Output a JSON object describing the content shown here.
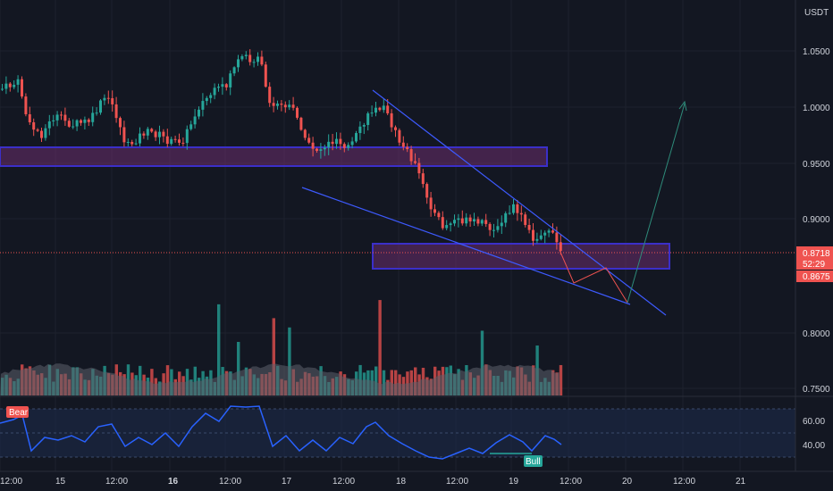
{
  "currency": "USDT",
  "price_axis": {
    "ticks": [
      "1.0500",
      "1.0000",
      "0.9500",
      "0.9000",
      "0.8000",
      "0.7500"
    ],
    "current_price": "0.8718",
    "countdown": "52:29",
    "low_price": "0.8675"
  },
  "time_axis": {
    "ticks": [
      "12:00",
      "15",
      "12:00",
      "16",
      "12:00",
      "17",
      "12:00",
      "18",
      "12:00",
      "19",
      "12:00",
      "20",
      "12:00",
      "21"
    ]
  },
  "rsi": {
    "ticks": [
      "60.00",
      "40.00"
    ],
    "bear_label": "Bear",
    "bull_label": "Bull"
  },
  "colors": {
    "background": "#131722",
    "up": "#26a69a",
    "down": "#ef5350",
    "zone_border": "#3b2fc9",
    "zone_fill": "#6b2e6e",
    "trendline": "#3d5afe",
    "rsi_line": "#2962ff",
    "projection_up": "#2e8b7a",
    "projection_down": "#ef5350"
  }
}
